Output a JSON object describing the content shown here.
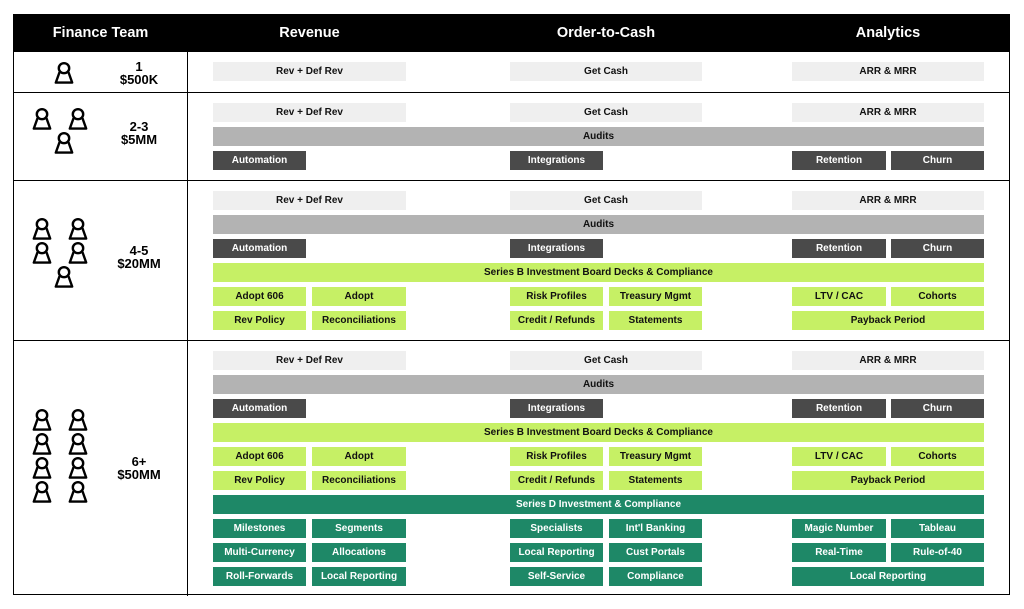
{
  "header": {
    "finance_team": "Finance Team",
    "revenue": "Revenue",
    "order_to_cash": "Order-to-Cash",
    "analytics": "Analytics"
  },
  "colors": {
    "header_bg": "#000000",
    "light": "#efefef",
    "gray": "#b3b3b3",
    "dark": "#4a4a4a",
    "lime": "#c6f065",
    "teal": "#1e8867"
  },
  "tiers": [
    {
      "headcount": "1",
      "revenue": "$500K",
      "people": 1,
      "boxes": [
        {
          "text": "Rev + Def Rev",
          "style": "light"
        },
        {
          "text": "Get Cash",
          "style": "light"
        },
        {
          "text": "ARR & MRR",
          "style": "light"
        }
      ]
    },
    {
      "headcount": "2-3",
      "revenue": "$5MM",
      "people": 3,
      "boxes": [
        {
          "text": "Rev + Def Rev",
          "style": "light"
        },
        {
          "text": "Get Cash",
          "style": "light"
        },
        {
          "text": "ARR & MRR",
          "style": "light"
        },
        {
          "text": "Audits",
          "style": "gray"
        },
        {
          "text": "Automation",
          "style": "dark"
        },
        {
          "text": "Integrations",
          "style": "dark"
        },
        {
          "text": "Retention",
          "style": "dark"
        },
        {
          "text": "Churn",
          "style": "dark"
        }
      ]
    },
    {
      "headcount": "4-5",
      "revenue": "$20MM",
      "people": 5,
      "boxes": [
        {
          "text": "Rev + Def Rev",
          "style": "light"
        },
        {
          "text": "Get Cash",
          "style": "light"
        },
        {
          "text": "ARR & MRR",
          "style": "light"
        },
        {
          "text": "Audits",
          "style": "gray"
        },
        {
          "text": "Automation",
          "style": "dark"
        },
        {
          "text": "Integrations",
          "style": "dark"
        },
        {
          "text": "Retention",
          "style": "dark"
        },
        {
          "text": "Churn",
          "style": "dark"
        },
        {
          "text": "Series B Investment Board Decks & Compliance",
          "style": "lime"
        },
        {
          "text": "Adopt 606",
          "style": "lime"
        },
        {
          "text": "Adopt",
          "style": "lime"
        },
        {
          "text": "Risk Profiles",
          "style": "lime"
        },
        {
          "text": "Treasury Mgmt",
          "style": "lime"
        },
        {
          "text": "LTV / CAC",
          "style": "lime"
        },
        {
          "text": "Cohorts",
          "style": "lime"
        },
        {
          "text": "Rev Policy",
          "style": "lime"
        },
        {
          "text": "Reconciliations",
          "style": "lime"
        },
        {
          "text": "Credit / Refunds",
          "style": "lime"
        },
        {
          "text": "Statements",
          "style": "lime"
        },
        {
          "text": "Payback Period",
          "style": "lime"
        }
      ]
    },
    {
      "headcount": "6+",
      "revenue": "$50MM",
      "people": 8,
      "boxes": [
        {
          "text": "Rev + Def Rev",
          "style": "light"
        },
        {
          "text": "Get Cash",
          "style": "light"
        },
        {
          "text": "ARR & MRR",
          "style": "light"
        },
        {
          "text": "Audits",
          "style": "gray"
        },
        {
          "text": "Automation",
          "style": "dark"
        },
        {
          "text": "Integrations",
          "style": "dark"
        },
        {
          "text": "Retention",
          "style": "dark"
        },
        {
          "text": "Churn",
          "style": "dark"
        },
        {
          "text": "Series B Investment Board Decks & Compliance",
          "style": "lime"
        },
        {
          "text": "Adopt 606",
          "style": "lime"
        },
        {
          "text": "Adopt",
          "style": "lime"
        },
        {
          "text": "Risk Profiles",
          "style": "lime"
        },
        {
          "text": "Treasury Mgmt",
          "style": "lime"
        },
        {
          "text": "LTV / CAC",
          "style": "lime"
        },
        {
          "text": "Cohorts",
          "style": "lime"
        },
        {
          "text": "Rev Policy",
          "style": "lime"
        },
        {
          "text": "Reconciliations",
          "style": "lime"
        },
        {
          "text": "Credit / Refunds",
          "style": "lime"
        },
        {
          "text": "Statements",
          "style": "lime"
        },
        {
          "text": "Payback Period",
          "style": "lime"
        },
        {
          "text": "Series D Investment & Compliance",
          "style": "teal"
        },
        {
          "text": "Milestones",
          "style": "teal"
        },
        {
          "text": "Segments",
          "style": "teal"
        },
        {
          "text": "Specialists",
          "style": "teal"
        },
        {
          "text": "Int'l Banking",
          "style": "teal"
        },
        {
          "text": "Magic Number",
          "style": "teal"
        },
        {
          "text": "Tableau",
          "style": "teal"
        },
        {
          "text": "Multi-Currency",
          "style": "teal"
        },
        {
          "text": "Allocations",
          "style": "teal"
        },
        {
          "text": "Local Reporting",
          "style": "teal"
        },
        {
          "text": "Cust Portals",
          "style": "teal"
        },
        {
          "text": "Real-Time",
          "style": "teal"
        },
        {
          "text": "Rule-of-40",
          "style": "teal"
        },
        {
          "text": "Roll-Forwards",
          "style": "teal"
        },
        {
          "text": "Local Reporting",
          "style": "teal"
        },
        {
          "text": "Self-Service",
          "style": "teal"
        },
        {
          "text": "Compliance",
          "style": "teal"
        },
        {
          "text": "Local Reporting",
          "style": "teal"
        }
      ]
    }
  ]
}
